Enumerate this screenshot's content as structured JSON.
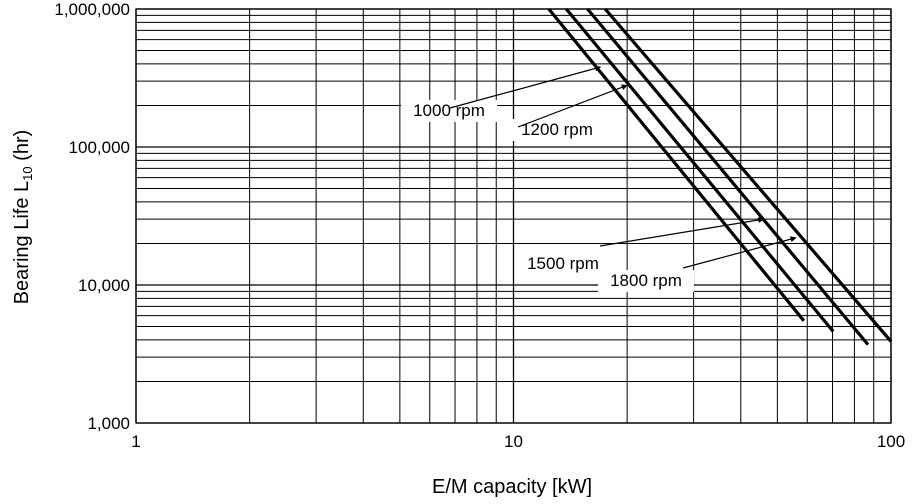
{
  "chart_data": {
    "type": "line",
    "xlabel": "E/M capacity [kW]",
    "ylabel": {
      "main": "Bearing Life L",
      "sub": "10",
      "suffix": " (hr)"
    },
    "xscale": "log",
    "yscale": "log",
    "xlim": [
      1,
      100
    ],
    "ylim": [
      1000,
      1000000
    ],
    "grid": true,
    "x_ticks": [
      {
        "value": 1,
        "label": "1"
      },
      {
        "value": 10,
        "label": "10"
      },
      {
        "value": 100,
        "label": "100"
      }
    ],
    "y_ticks": [
      {
        "value": 1000,
        "label": "1,000"
      },
      {
        "value": 10000,
        "label": "10,000"
      },
      {
        "value": 100000,
        "label": "100,000"
      },
      {
        "value": 1000000,
        "label": "1,000,000"
      }
    ],
    "series": [
      {
        "name": "1000 rpm",
        "x": [
          12.4,
          58.8
        ],
        "y": [
          1000000,
          5500
        ]
      },
      {
        "name": "1200 rpm",
        "x": [
          13.8,
          70.3
        ],
        "y": [
          1000000,
          4600
        ]
      },
      {
        "name": "1500 rpm",
        "x": [
          15.7,
          86.9
        ],
        "y": [
          1000000,
          3700
        ]
      },
      {
        "name": "1800 rpm",
        "x": [
          17.5,
          100
        ],
        "y": [
          1000000,
          3900
        ]
      }
    ],
    "annotations": [
      {
        "series": "1000 rpm",
        "text": "1000 rpm",
        "arrow_to": {
          "x": 17.0,
          "y": 380000
        }
      },
      {
        "series": "1200 rpm",
        "text": "1200 rpm",
        "arrow_to": {
          "x": 20.0,
          "y": 280000
        }
      },
      {
        "series": "1500 rpm",
        "text": "1500 rpm",
        "arrow_to": {
          "x": 46.0,
          "y": 30000
        }
      },
      {
        "series": "1800 rpm",
        "text": "1800 rpm",
        "arrow_to": {
          "x": 56.0,
          "y": 22000
        }
      }
    ]
  }
}
